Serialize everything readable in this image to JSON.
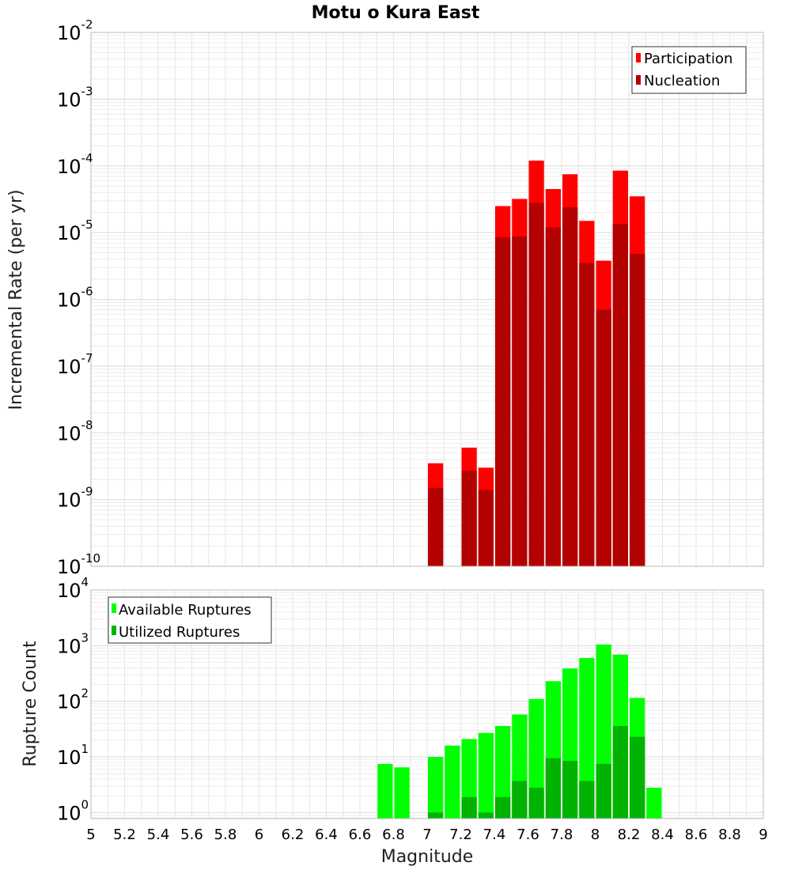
{
  "title": "Motu o Kura East",
  "xlabel": "Magnitude",
  "colors": {
    "participation": "#ff0000",
    "nucleation": "#b30000",
    "available": "#00ff00",
    "utilized": "#00b300",
    "grid": "#e6e6e6",
    "frame": "#bbbbbb"
  },
  "chart_data": [
    {
      "type": "bar",
      "ylabel": "Incremental Rate (per yr)",
      "yscale": "log",
      "ylim": [
        1e-10,
        0.01
      ],
      "xlim": [
        5,
        9
      ],
      "grid": true,
      "legend_position": "top-right",
      "x": [
        7.05,
        7.25,
        7.35,
        7.45,
        7.55,
        7.65,
        7.75,
        7.85,
        7.95,
        8.05,
        8.15,
        8.25
      ],
      "series": [
        {
          "name": "Participation",
          "values": [
            3.5e-09,
            6e-09,
            3e-09,
            2.5e-05,
            3.2e-05,
            0.00012,
            4.5e-05,
            7.5e-05,
            1.5e-05,
            3.8e-06,
            8.5e-05,
            3.5e-05
          ]
        },
        {
          "name": "Nucleation",
          "values": [
            1.5e-09,
            2.7e-09,
            1.4e-09,
            8.5e-06,
            8.8e-06,
            2.8e-05,
            1.2e-05,
            2.4e-05,
            3.5e-06,
            7e-07,
            1.35e-05,
            4.8e-06
          ]
        }
      ]
    },
    {
      "type": "bar",
      "ylabel": "Rupture Count",
      "yscale": "log",
      "ylim": [
        0.78,
        10000.0
      ],
      "xlim": [
        5,
        9
      ],
      "grid": true,
      "legend_position": "top-left",
      "x": [
        6.75,
        6.85,
        7.05,
        7.15,
        7.25,
        7.35,
        7.45,
        7.55,
        7.65,
        7.75,
        7.85,
        7.95,
        8.05,
        8.15,
        8.25,
        8.35
      ],
      "series": [
        {
          "name": "Available Ruptures",
          "values": [
            7.5,
            6.5,
            10,
            16,
            21,
            27,
            36,
            58,
            110,
            230,
            390,
            600,
            1050,
            690,
            115,
            2.8
          ]
        },
        {
          "name": "Utilized Ruptures",
          "values": [
            null,
            null,
            1,
            null,
            1.9,
            1,
            1.9,
            3.7,
            2.8,
            9.5,
            8.5,
            3.7,
            7.5,
            36,
            23,
            null
          ]
        }
      ]
    }
  ],
  "x_ticks": [
    "5",
    "5.2",
    "5.4",
    "5.6",
    "5.8",
    "6",
    "6.2",
    "6.4",
    "6.6",
    "6.8",
    "7",
    "7.2",
    "7.4",
    "7.6",
    "7.8",
    "8",
    "8.2",
    "8.4",
    "8.6",
    "8.8",
    "9"
  ],
  "y_ticks_top": [
    {
      "base": "10",
      "exp": "-10"
    },
    {
      "base": "10",
      "exp": "-9"
    },
    {
      "base": "10",
      "exp": "-8"
    },
    {
      "base": "10",
      "exp": "-7"
    },
    {
      "base": "10",
      "exp": "-6"
    },
    {
      "base": "10",
      "exp": "-5"
    },
    {
      "base": "10",
      "exp": "-4"
    },
    {
      "base": "10",
      "exp": "-3"
    },
    {
      "base": "10",
      "exp": "-2"
    }
  ],
  "y_ticks_bottom": [
    {
      "base": "10",
      "exp": "0"
    },
    {
      "base": "10",
      "exp": "1"
    },
    {
      "base": "10",
      "exp": "2"
    },
    {
      "base": "10",
      "exp": "3"
    },
    {
      "base": "10",
      "exp": "4"
    }
  ]
}
